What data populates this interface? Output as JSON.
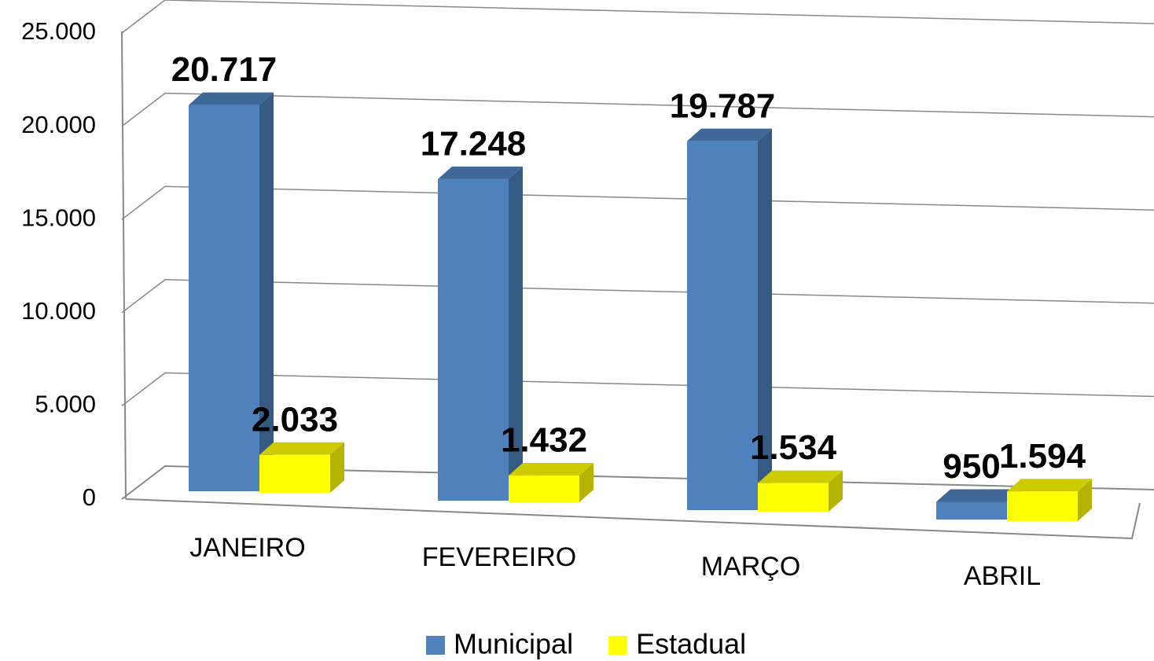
{
  "chart_data": {
    "type": "bar3d",
    "categories": [
      "JANEIRO",
      "FEVEREIRO",
      "MARÇO",
      "ABRIL"
    ],
    "series": [
      {
        "name": "Municipal",
        "color": "#4f81bd",
        "values": [
          20717,
          17248,
          19787,
          950
        ],
        "value_labels": [
          "20.717",
          "17.248",
          "19.787",
          "950"
        ]
      },
      {
        "name": "Estadual",
        "color": "#ffff00",
        "values": [
          2033,
          1432,
          1534,
          1594
        ],
        "value_labels": [
          "2.033",
          "1.432",
          "1.534",
          "1.594"
        ]
      }
    ],
    "ylim": [
      0,
      25000
    ],
    "yticks": [
      0,
      {
        "value": 5000,
        "label": "5.000"
      },
      {
        "value": 10000,
        "label": "10.000"
      },
      {
        "value": 15000,
        "label": "15.000"
      },
      {
        "value": 20000,
        "label": "20.000"
      },
      {
        "value": 25000,
        "label": "25.000"
      }
    ],
    "grid": true,
    "legend": "bottom"
  }
}
